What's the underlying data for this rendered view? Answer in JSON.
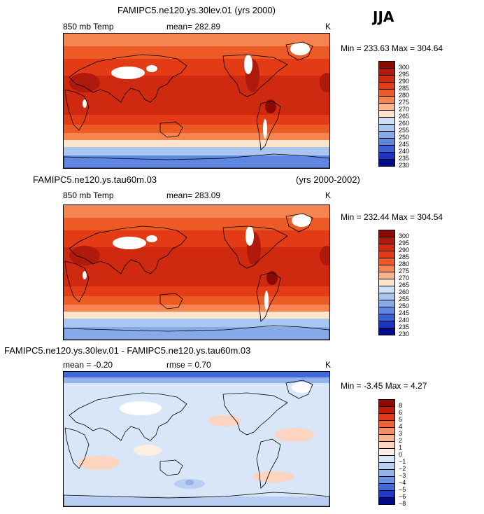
{
  "season": "JJA",
  "units": "K",
  "panels": [
    {
      "title": "FAMIPC5.ne120.ys.30lev.01 (yrs 2000)",
      "variable": "850 mb Temp",
      "stat_text": "mean= 282.89",
      "minmax_text": "Min = 233.63 Max = 304.64",
      "palette": "temp"
    },
    {
      "title": "FAMIPC5.ne120.ys.tau60m.03",
      "years": "(yrs 2000-2002)",
      "variable": "850 mb Temp",
      "stat_text": "mean= 283.09",
      "minmax_text": "Min = 232.44 Max = 304.54",
      "palette": "temp"
    },
    {
      "title": "FAMIPC5.ne120.ys.30lev.01 - FAMIPC5.ne120.ys.tau60m.03",
      "mean_text": "mean =   -0.20",
      "rmse_text": "rmse =    0.70",
      "minmax_text": "Min =  -3.45 Max =    4.27",
      "palette": "diff"
    }
  ],
  "chart_data": [
    {
      "type": "heatmap",
      "title": "FAMIPC5.ne120.ys.30lev.01 (yrs 2000)",
      "variable": "850 mb Temp",
      "units": "K",
      "mean": 282.89,
      "min": 233.63,
      "max": 304.64,
      "levels": [
        "300",
        "295",
        "290",
        "285",
        "280",
        "275",
        "270",
        "265",
        "260",
        "255",
        "250",
        "245",
        "240",
        "235",
        "230"
      ],
      "colors": [
        "#8c0a04",
        "#b01a0c",
        "#cf2a10",
        "#e23b16",
        "#ec5a26",
        "#f58451",
        "#fbb48c",
        "#fde2cc",
        "#cfe0f5",
        "#a8c6ee",
        "#86a9e7",
        "#5f86e0",
        "#3b5fd6",
        "#1f33c1",
        "#000a8a"
      ]
    },
    {
      "type": "heatmap",
      "title": "FAMIPC5.ne120.ys.tau60m.03",
      "years": "(yrs 2000-2002)",
      "variable": "850 mb Temp",
      "units": "K",
      "mean": 283.09,
      "min": 232.44,
      "max": 304.54,
      "levels": [
        "300",
        "295",
        "290",
        "285",
        "280",
        "275",
        "270",
        "265",
        "260",
        "255",
        "250",
        "245",
        "240",
        "235",
        "230"
      ],
      "colors": [
        "#8c0a04",
        "#b01a0c",
        "#cf2a10",
        "#e23b16",
        "#ec5a26",
        "#f58451",
        "#fbb48c",
        "#fde2cc",
        "#cfe0f5",
        "#a8c6ee",
        "#86a9e7",
        "#5f86e0",
        "#3b5fd6",
        "#1f33c1",
        "#000a8a"
      ]
    },
    {
      "type": "heatmap",
      "title": "FAMIPC5.ne120.ys.30lev.01 - FAMIPC5.ne120.ys.tau60m.03",
      "units": "K",
      "mean": -0.2,
      "rmse": 0.7,
      "min": -3.45,
      "max": 4.27,
      "levels": [
        "8",
        "6",
        "5",
        "4",
        "3",
        "2",
        "1",
        "0",
        "−1",
        "−2",
        "−3",
        "−4",
        "−5",
        "−6",
        "−8"
      ],
      "colors": [
        "#8c0a04",
        "#bd1e0c",
        "#e03a18",
        "#ee6236",
        "#f58d63",
        "#f9b393",
        "#fcd4bf",
        "#fdeee4",
        "#d9e6f7",
        "#b8cff1",
        "#93b4ea",
        "#6c92e2",
        "#4468d9",
        "#2238c4",
        "#000a8a"
      ]
    }
  ]
}
